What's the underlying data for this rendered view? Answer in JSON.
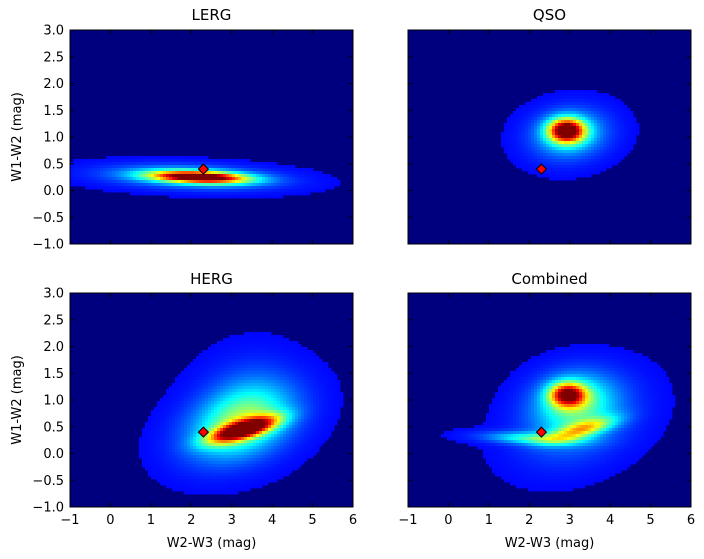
{
  "chart_data": [
    {
      "type": "heatmap",
      "title": "LERG",
      "xlabel": "",
      "ylabel": "W1-W2 (mag)",
      "xlim": [
        -1,
        6
      ],
      "ylim": [
        -1,
        3
      ],
      "density_blobs": [
        {
          "x": 2.2,
          "y": 0.25,
          "sx": 0.8,
          "sy": 0.075,
          "rho": -0.3,
          "w": 1.0
        },
        {
          "x": 2.0,
          "y": 0.25,
          "sx": 1.3,
          "sy": 0.14,
          "rho": -0.25,
          "w": 0.3
        }
      ],
      "marker": {
        "x": 2.3,
        "y": 0.4,
        "color": "#ff0000"
      }
    },
    {
      "type": "heatmap",
      "title": "QSO",
      "xlabel": "",
      "ylabel": "",
      "xlim": [
        -1,
        6
      ],
      "ylim": [
        -1,
        3
      ],
      "density_blobs": [
        {
          "x": 2.92,
          "y": 1.12,
          "sx": 0.3,
          "sy": 0.15,
          "rho": 0.0,
          "w": 1.0
        },
        {
          "x": 3.0,
          "y": 1.05,
          "sx": 0.6,
          "sy": 0.3,
          "rho": 0.1,
          "w": 0.3
        }
      ],
      "marker": {
        "x": 2.3,
        "y": 0.4,
        "color": "#ff0000"
      }
    },
    {
      "type": "heatmap",
      "title": "HERG",
      "xlabel": "W2-W3 (mag)",
      "ylabel": "W1-W2 (mag)",
      "xlim": [
        -1,
        6
      ],
      "ylim": [
        -1,
        3
      ],
      "density_blobs": [
        {
          "x": 3.3,
          "y": 0.45,
          "sx": 0.55,
          "sy": 0.16,
          "rho": 0.7,
          "w": 1.0
        },
        {
          "x": 3.2,
          "y": 0.55,
          "sx": 0.85,
          "sy": 0.45,
          "rho": 0.35,
          "w": 0.4
        },
        {
          "x": 3.4,
          "y": 0.9,
          "sx": 0.75,
          "sy": 0.55,
          "rho": 0.1,
          "w": 0.12
        }
      ],
      "marker": {
        "x": 2.3,
        "y": 0.4,
        "color": "#ff0000"
      }
    },
    {
      "type": "heatmap",
      "title": "Combined",
      "xlabel": "W2-W3 (mag)",
      "ylabel": "",
      "xlim": [
        -1,
        6
      ],
      "ylim": [
        -1,
        3
      ],
      "density_blobs": [
        {
          "x": 2.95,
          "y": 1.1,
          "sx": 0.3,
          "sy": 0.15,
          "rho": 0.0,
          "w": 0.8
        },
        {
          "x": 3.1,
          "y": 1.0,
          "sx": 0.65,
          "sy": 0.35,
          "rho": 0.1,
          "w": 0.3
        },
        {
          "x": 3.3,
          "y": 0.45,
          "sx": 0.55,
          "sy": 0.15,
          "rho": 0.7,
          "w": 0.45
        },
        {
          "x": 2.1,
          "y": 0.28,
          "sx": 0.8,
          "sy": 0.08,
          "rho": -0.3,
          "w": 0.3
        },
        {
          "x": 3.2,
          "y": 0.6,
          "sx": 0.9,
          "sy": 0.5,
          "rho": 0.3,
          "w": 0.18
        }
      ],
      "marker": {
        "x": 2.3,
        "y": 0.4,
        "color": "#ff0000"
      }
    }
  ],
  "x_ticks": [
    "−1",
    "0",
    "1",
    "2",
    "3",
    "4",
    "5",
    "6"
  ],
  "y_ticks": [
    "−1.0",
    "−0.5",
    "0.0",
    "0.5",
    "1.0",
    "1.5",
    "2.0",
    "2.5",
    "3.0"
  ],
  "colormap": "jet",
  "background_color": "#00007f"
}
